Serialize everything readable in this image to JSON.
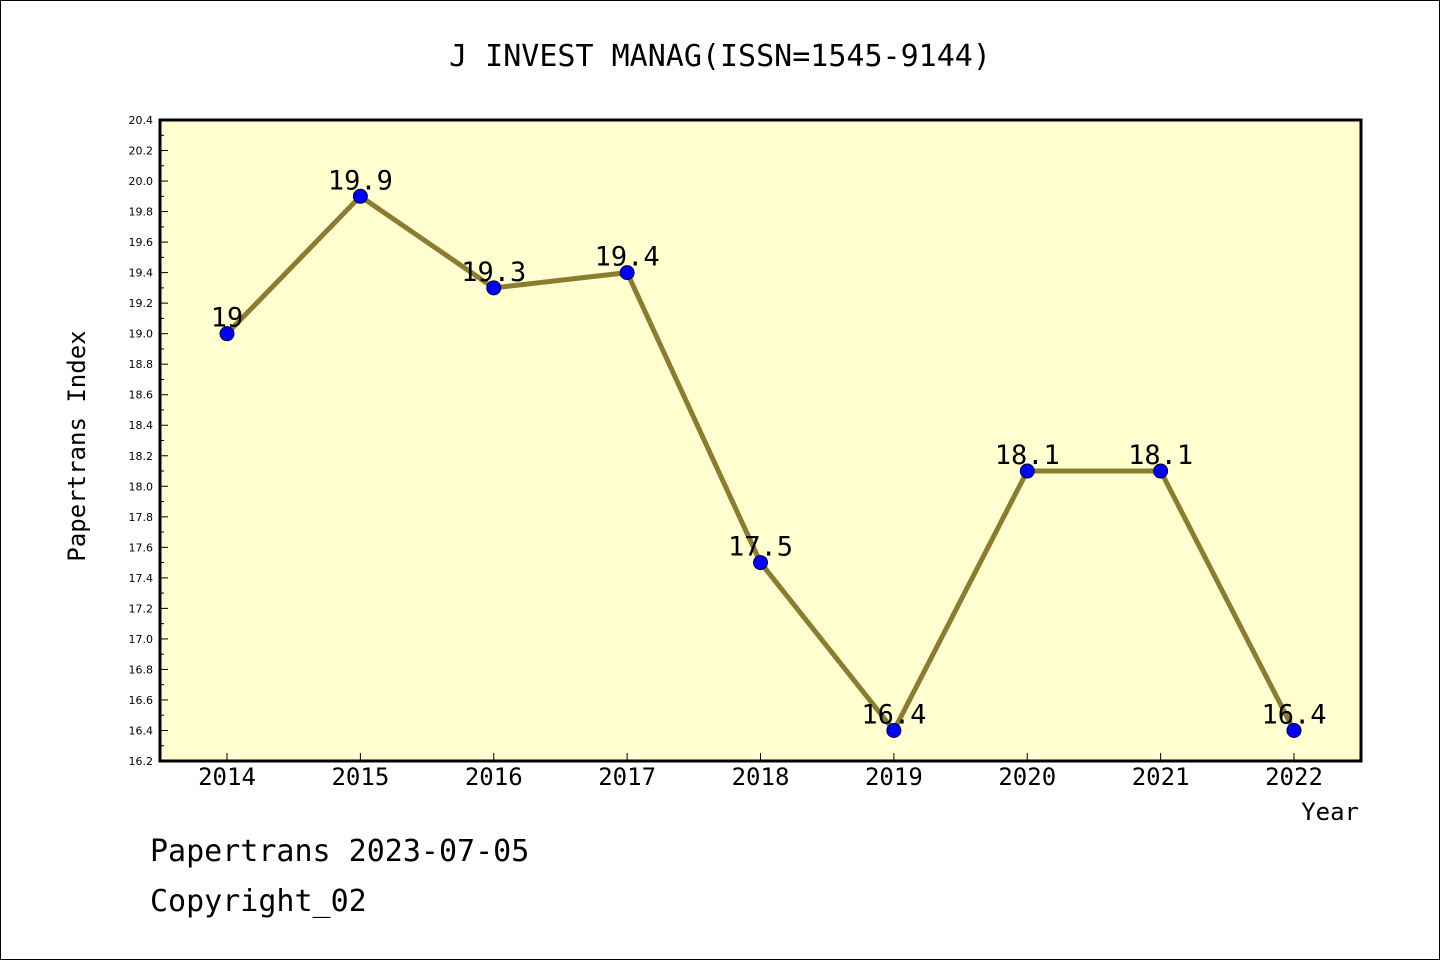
{
  "chart_data": {
    "type": "line",
    "title": "J INVEST MANAG(ISSN=1545-9144)",
    "xlabel": "Year",
    "ylabel": "Papertrans Index",
    "categories": [
      "2014",
      "2015",
      "2016",
      "2017",
      "2018",
      "2019",
      "2020",
      "2021",
      "2022"
    ],
    "series": [
      {
        "values": [
          19.0,
          19.9,
          19.3,
          19.4,
          17.5,
          16.4,
          18.1,
          18.1,
          16.4
        ],
        "labels": [
          "19",
          "19.9",
          "19.3",
          "19.4",
          "17.5",
          "16.4",
          "18.1",
          "18.1",
          "16.4"
        ]
      }
    ],
    "ylim": [
      16.2,
      20.4
    ],
    "yticks": [
      "16.2",
      "16.4",
      "16.6",
      "16.8",
      "17.0",
      "17.2",
      "17.4",
      "17.6",
      "17.8",
      "18.0",
      "18.2",
      "18.4",
      "18.6",
      "18.8",
      "19.0",
      "19.2",
      "19.4",
      "19.6",
      "19.8",
      "20.0",
      "20.2",
      "20.4"
    ],
    "grid": false,
    "colors": {
      "plot_background": "#ffffd0",
      "line": "#8b7d30",
      "marker": "#0000ff"
    }
  },
  "footer": {
    "line1": "Papertrans 2023-07-05",
    "line2": "Copyright_02"
  }
}
